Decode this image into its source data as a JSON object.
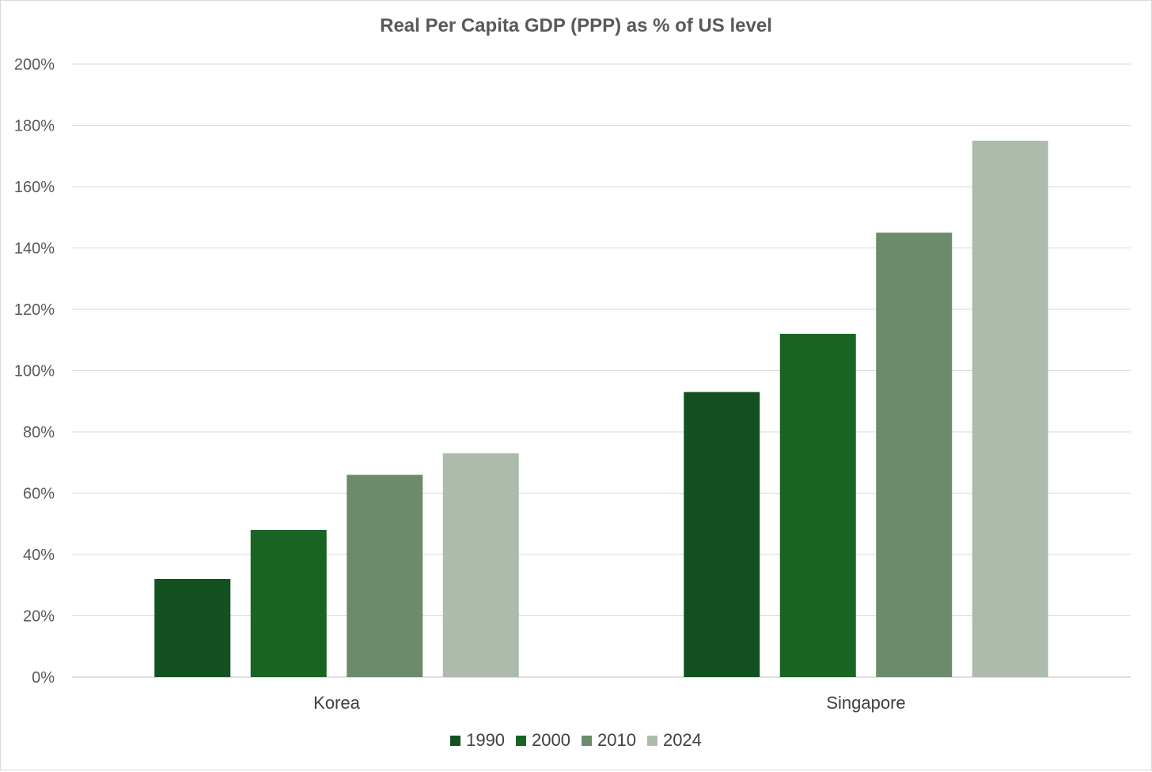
{
  "chart_data": {
    "type": "bar",
    "title": "Real Per Capita GDP (PPP) as % of US level",
    "categories": [
      "Korea",
      "Singapore"
    ],
    "series": [
      {
        "name": "1990",
        "color": "#135220",
        "values": [
          32,
          93
        ]
      },
      {
        "name": "2000",
        "color": "#1a6423",
        "values": [
          48,
          112
        ]
      },
      {
        "name": "2010",
        "color": "#6b8b6b",
        "values": [
          66,
          145
        ]
      },
      {
        "name": "2024",
        "color": "#adbbad",
        "values": [
          73,
          175
        ]
      }
    ],
    "ylim": [
      0,
      200
    ],
    "yticks": [
      "0%",
      "20%",
      "40%",
      "60%",
      "80%",
      "100%",
      "120%",
      "140%",
      "160%",
      "180%",
      "200%"
    ],
    "ytick_values": [
      0,
      20,
      40,
      60,
      80,
      100,
      120,
      140,
      160,
      180,
      200
    ],
    "grid": true,
    "legend_position": "bottom"
  }
}
